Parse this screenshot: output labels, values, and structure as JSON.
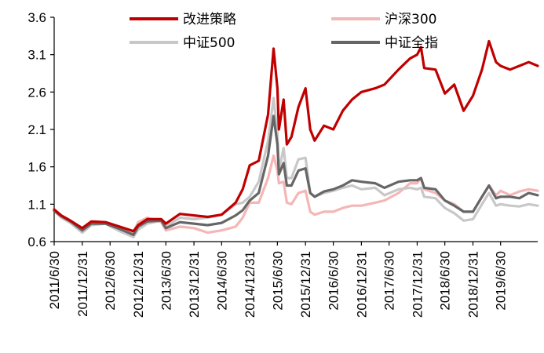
{
  "chart_data": {
    "type": "line",
    "title": "",
    "xlabel": "",
    "ylabel": "",
    "ylim": [
      0.6,
      3.6
    ],
    "yticks": [
      "0.6",
      "1.1",
      "1.6",
      "2.1",
      "2.6",
      "3.1",
      "3.6"
    ],
    "xlim": [
      "2011-06-30",
      "2020-02-28"
    ],
    "xticks": [
      {
        "date": "2011-06-30",
        "label": "2011/6/30"
      },
      {
        "date": "2011-12-31",
        "label": "2011/12/31"
      },
      {
        "date": "2012-06-30",
        "label": "2012/6/30"
      },
      {
        "date": "2012-12-31",
        "label": "2012/12/31"
      },
      {
        "date": "2013-06-30",
        "label": "2013/6/30"
      },
      {
        "date": "2013-12-31",
        "label": "2013/12/31"
      },
      {
        "date": "2014-06-30",
        "label": "2014/6/30"
      },
      {
        "date": "2014-12-31",
        "label": "2014/12/31"
      },
      {
        "date": "2015-06-30",
        "label": "2015/6/30"
      },
      {
        "date": "2015-12-31",
        "label": "2015/12/31"
      },
      {
        "date": "2016-06-30",
        "label": "2016/6/30"
      },
      {
        "date": "2016-12-31",
        "label": "2016/12/31"
      },
      {
        "date": "2017-06-30",
        "label": "2017/6/30"
      },
      {
        "date": "2017-12-31",
        "label": "2017/12/31"
      },
      {
        "date": "2018-06-30",
        "label": "2018/6/30"
      },
      {
        "date": "2018-12-31",
        "label": "2018/12/31"
      },
      {
        "date": "2019-06-30",
        "label": "2019/6/30"
      }
    ],
    "grid": false,
    "legend_position": "top",
    "series": [
      {
        "name": "改进策略",
        "color": "#c00000",
        "points": [
          [
            "2011-06-30",
            1.03
          ],
          [
            "2011-08-15",
            0.95
          ],
          [
            "2011-10-15",
            0.88
          ],
          [
            "2011-12-31",
            0.78
          ],
          [
            "2012-02-28",
            0.87
          ],
          [
            "2012-05-31",
            0.86
          ],
          [
            "2012-08-31",
            0.8
          ],
          [
            "2012-11-30",
            0.74
          ],
          [
            "2012-12-31",
            0.82
          ],
          [
            "2013-02-28",
            0.9
          ],
          [
            "2013-05-31",
            0.9
          ],
          [
            "2013-06-30",
            0.84
          ],
          [
            "2013-09-30",
            0.97
          ],
          [
            "2013-12-31",
            0.95
          ],
          [
            "2014-03-31",
            0.93
          ],
          [
            "2014-06-30",
            0.96
          ],
          [
            "2014-09-30",
            1.12
          ],
          [
            "2014-11-15",
            1.3
          ],
          [
            "2014-12-31",
            1.62
          ],
          [
            "2015-02-28",
            1.68
          ],
          [
            "2015-04-30",
            2.3
          ],
          [
            "2015-06-05",
            3.18
          ],
          [
            "2015-06-30",
            2.65
          ],
          [
            "2015-07-10",
            2.1
          ],
          [
            "2015-08-10",
            2.5
          ],
          [
            "2015-08-31",
            1.9
          ],
          [
            "2015-09-30",
            2.0
          ],
          [
            "2015-11-15",
            2.4
          ],
          [
            "2015-12-31",
            2.65
          ],
          [
            "2016-01-31",
            2.1
          ],
          [
            "2016-02-29",
            1.95
          ],
          [
            "2016-04-30",
            2.15
          ],
          [
            "2016-06-30",
            2.1
          ],
          [
            "2016-08-31",
            2.35
          ],
          [
            "2016-10-31",
            2.5
          ],
          [
            "2016-12-31",
            2.6
          ],
          [
            "2017-03-31",
            2.65
          ],
          [
            "2017-05-31",
            2.7
          ],
          [
            "2017-08-31",
            2.9
          ],
          [
            "2017-11-15",
            3.05
          ],
          [
            "2017-12-31",
            3.1
          ],
          [
            "2018-01-25",
            3.2
          ],
          [
            "2018-02-15",
            2.92
          ],
          [
            "2018-04-30",
            2.9
          ],
          [
            "2018-06-30",
            2.58
          ],
          [
            "2018-08-31",
            2.7
          ],
          [
            "2018-10-31",
            2.35
          ],
          [
            "2018-12-31",
            2.55
          ],
          [
            "2019-02-28",
            2.9
          ],
          [
            "2019-04-15",
            3.28
          ],
          [
            "2019-05-31",
            3.0
          ],
          [
            "2019-06-30",
            2.95
          ],
          [
            "2019-08-31",
            2.9
          ],
          [
            "2019-10-31",
            2.95
          ],
          [
            "2019-12-31",
            3.0
          ],
          [
            "2020-02-28",
            2.95
          ]
        ]
      },
      {
        "name": "沪深300",
        "color": "#f4b6b6",
        "points": [
          [
            "2011-06-30",
            1.02
          ],
          [
            "2011-08-15",
            0.94
          ],
          [
            "2011-10-15",
            0.88
          ],
          [
            "2011-12-31",
            0.78
          ],
          [
            "2012-02-28",
            0.85
          ],
          [
            "2012-05-31",
            0.85
          ],
          [
            "2012-08-31",
            0.78
          ],
          [
            "2012-11-30",
            0.72
          ],
          [
            "2012-12-31",
            0.86
          ],
          [
            "2013-02-28",
            0.92
          ],
          [
            "2013-05-31",
            0.86
          ],
          [
            "2013-06-30",
            0.75
          ],
          [
            "2013-09-30",
            0.8
          ],
          [
            "2013-12-31",
            0.78
          ],
          [
            "2014-03-31",
            0.72
          ],
          [
            "2014-06-30",
            0.75
          ],
          [
            "2014-09-30",
            0.8
          ],
          [
            "2014-11-15",
            0.92
          ],
          [
            "2014-12-31",
            1.12
          ],
          [
            "2015-02-28",
            1.12
          ],
          [
            "2015-04-30",
            1.45
          ],
          [
            "2015-06-05",
            1.75
          ],
          [
            "2015-06-30",
            1.55
          ],
          [
            "2015-07-10",
            1.38
          ],
          [
            "2015-08-10",
            1.4
          ],
          [
            "2015-08-31",
            1.12
          ],
          [
            "2015-09-30",
            1.1
          ],
          [
            "2015-11-15",
            1.25
          ],
          [
            "2015-12-31",
            1.28
          ],
          [
            "2016-01-31",
            1.0
          ],
          [
            "2016-02-29",
            0.96
          ],
          [
            "2016-04-30",
            1.0
          ],
          [
            "2016-06-30",
            1.0
          ],
          [
            "2016-08-31",
            1.05
          ],
          [
            "2016-10-31",
            1.08
          ],
          [
            "2016-12-31",
            1.08
          ],
          [
            "2017-03-31",
            1.12
          ],
          [
            "2017-05-31",
            1.15
          ],
          [
            "2017-08-31",
            1.25
          ],
          [
            "2017-11-15",
            1.38
          ],
          [
            "2017-12-31",
            1.38
          ],
          [
            "2018-01-25",
            1.45
          ],
          [
            "2018-02-15",
            1.3
          ],
          [
            "2018-04-30",
            1.25
          ],
          [
            "2018-06-30",
            1.15
          ],
          [
            "2018-08-31",
            1.1
          ],
          [
            "2018-10-31",
            1.0
          ],
          [
            "2018-12-31",
            1.0
          ],
          [
            "2019-02-28",
            1.2
          ],
          [
            "2019-04-15",
            1.35
          ],
          [
            "2019-05-31",
            1.22
          ],
          [
            "2019-06-30",
            1.28
          ],
          [
            "2019-08-31",
            1.22
          ],
          [
            "2019-10-31",
            1.27
          ],
          [
            "2019-12-31",
            1.3
          ],
          [
            "2020-02-28",
            1.28
          ]
        ]
      },
      {
        "name": "中证500",
        "color": "#c8c8c8",
        "points": [
          [
            "2011-06-30",
            1.02
          ],
          [
            "2011-08-15",
            0.92
          ],
          [
            "2011-10-15",
            0.85
          ],
          [
            "2011-12-31",
            0.72
          ],
          [
            "2012-02-28",
            0.82
          ],
          [
            "2012-05-31",
            0.84
          ],
          [
            "2012-08-31",
            0.74
          ],
          [
            "2012-11-30",
            0.66
          ],
          [
            "2012-12-31",
            0.76
          ],
          [
            "2013-02-28",
            0.84
          ],
          [
            "2013-05-31",
            0.88
          ],
          [
            "2013-06-30",
            0.8
          ],
          [
            "2013-09-30",
            0.92
          ],
          [
            "2013-12-31",
            0.9
          ],
          [
            "2014-03-31",
            0.92
          ],
          [
            "2014-06-30",
            0.96
          ],
          [
            "2014-09-30",
            1.1
          ],
          [
            "2014-11-15",
            1.12
          ],
          [
            "2014-12-31",
            1.2
          ],
          [
            "2015-02-28",
            1.4
          ],
          [
            "2015-04-30",
            1.95
          ],
          [
            "2015-06-05",
            2.52
          ],
          [
            "2015-06-30",
            2.05
          ],
          [
            "2015-07-10",
            1.55
          ],
          [
            "2015-08-10",
            1.85
          ],
          [
            "2015-08-31",
            1.45
          ],
          [
            "2015-09-30",
            1.45
          ],
          [
            "2015-11-15",
            1.7
          ],
          [
            "2015-12-31",
            1.72
          ],
          [
            "2016-01-31",
            1.25
          ],
          [
            "2016-02-29",
            1.2
          ],
          [
            "2016-04-30",
            1.25
          ],
          [
            "2016-06-30",
            1.28
          ],
          [
            "2016-08-31",
            1.32
          ],
          [
            "2016-10-31",
            1.35
          ],
          [
            "2016-12-31",
            1.3
          ],
          [
            "2017-03-31",
            1.32
          ],
          [
            "2017-05-31",
            1.22
          ],
          [
            "2017-08-31",
            1.3
          ],
          [
            "2017-11-15",
            1.32
          ],
          [
            "2017-12-31",
            1.3
          ],
          [
            "2018-01-25",
            1.32
          ],
          [
            "2018-02-15",
            1.2
          ],
          [
            "2018-04-30",
            1.18
          ],
          [
            "2018-06-30",
            1.05
          ],
          [
            "2018-08-31",
            0.98
          ],
          [
            "2018-10-31",
            0.88
          ],
          [
            "2018-12-31",
            0.9
          ],
          [
            "2019-02-28",
            1.1
          ],
          [
            "2019-04-15",
            1.25
          ],
          [
            "2019-05-31",
            1.08
          ],
          [
            "2019-06-30",
            1.1
          ],
          [
            "2019-08-31",
            1.08
          ],
          [
            "2019-10-31",
            1.07
          ],
          [
            "2019-12-31",
            1.1
          ],
          [
            "2020-02-28",
            1.08
          ]
        ]
      },
      {
        "name": "中证全指",
        "color": "#666666",
        "points": [
          [
            "2011-06-30",
            1.01
          ],
          [
            "2011-08-15",
            0.94
          ],
          [
            "2011-10-15",
            0.87
          ],
          [
            "2011-12-31",
            0.75
          ],
          [
            "2012-02-28",
            0.84
          ],
          [
            "2012-05-31",
            0.84
          ],
          [
            "2012-08-31",
            0.77
          ],
          [
            "2012-11-30",
            0.69
          ],
          [
            "2012-12-31",
            0.8
          ],
          [
            "2013-02-28",
            0.87
          ],
          [
            "2013-05-31",
            0.88
          ],
          [
            "2013-06-30",
            0.78
          ],
          [
            "2013-09-30",
            0.86
          ],
          [
            "2013-12-31",
            0.84
          ],
          [
            "2014-03-31",
            0.82
          ],
          [
            "2014-06-30",
            0.85
          ],
          [
            "2014-09-30",
            0.95
          ],
          [
            "2014-11-15",
            1.02
          ],
          [
            "2014-12-31",
            1.15
          ],
          [
            "2015-02-28",
            1.25
          ],
          [
            "2015-04-30",
            1.75
          ],
          [
            "2015-06-05",
            2.28
          ],
          [
            "2015-06-30",
            1.9
          ],
          [
            "2015-07-10",
            1.5
          ],
          [
            "2015-08-10",
            1.65
          ],
          [
            "2015-08-31",
            1.35
          ],
          [
            "2015-09-30",
            1.35
          ],
          [
            "2015-11-15",
            1.55
          ],
          [
            "2015-12-31",
            1.58
          ],
          [
            "2016-01-31",
            1.25
          ],
          [
            "2016-02-29",
            1.2
          ],
          [
            "2016-04-30",
            1.27
          ],
          [
            "2016-06-30",
            1.3
          ],
          [
            "2016-08-31",
            1.35
          ],
          [
            "2016-10-31",
            1.42
          ],
          [
            "2016-12-31",
            1.4
          ],
          [
            "2017-03-31",
            1.38
          ],
          [
            "2017-05-31",
            1.32
          ],
          [
            "2017-08-31",
            1.4
          ],
          [
            "2017-11-15",
            1.42
          ],
          [
            "2017-12-31",
            1.42
          ],
          [
            "2018-01-25",
            1.45
          ],
          [
            "2018-02-15",
            1.32
          ],
          [
            "2018-04-30",
            1.3
          ],
          [
            "2018-06-30",
            1.15
          ],
          [
            "2018-08-31",
            1.08
          ],
          [
            "2018-10-31",
            1.0
          ],
          [
            "2018-12-31",
            1.0
          ],
          [
            "2019-02-28",
            1.2
          ],
          [
            "2019-04-15",
            1.35
          ],
          [
            "2019-05-31",
            1.18
          ],
          [
            "2019-06-30",
            1.2
          ],
          [
            "2019-08-31",
            1.2
          ],
          [
            "2019-10-31",
            1.18
          ],
          [
            "2019-12-31",
            1.25
          ],
          [
            "2020-02-28",
            1.22
          ]
        ]
      }
    ]
  }
}
